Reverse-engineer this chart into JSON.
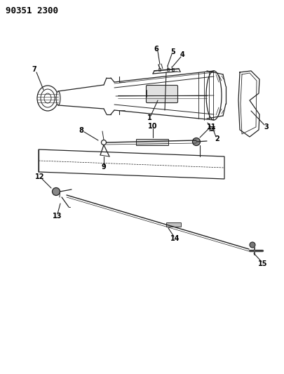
{
  "title": "90351 2300",
  "background_color": "#ffffff",
  "line_color": "#222222",
  "label_color": "#000000",
  "figsize": [
    4.05,
    5.33
  ],
  "dpi": 100
}
